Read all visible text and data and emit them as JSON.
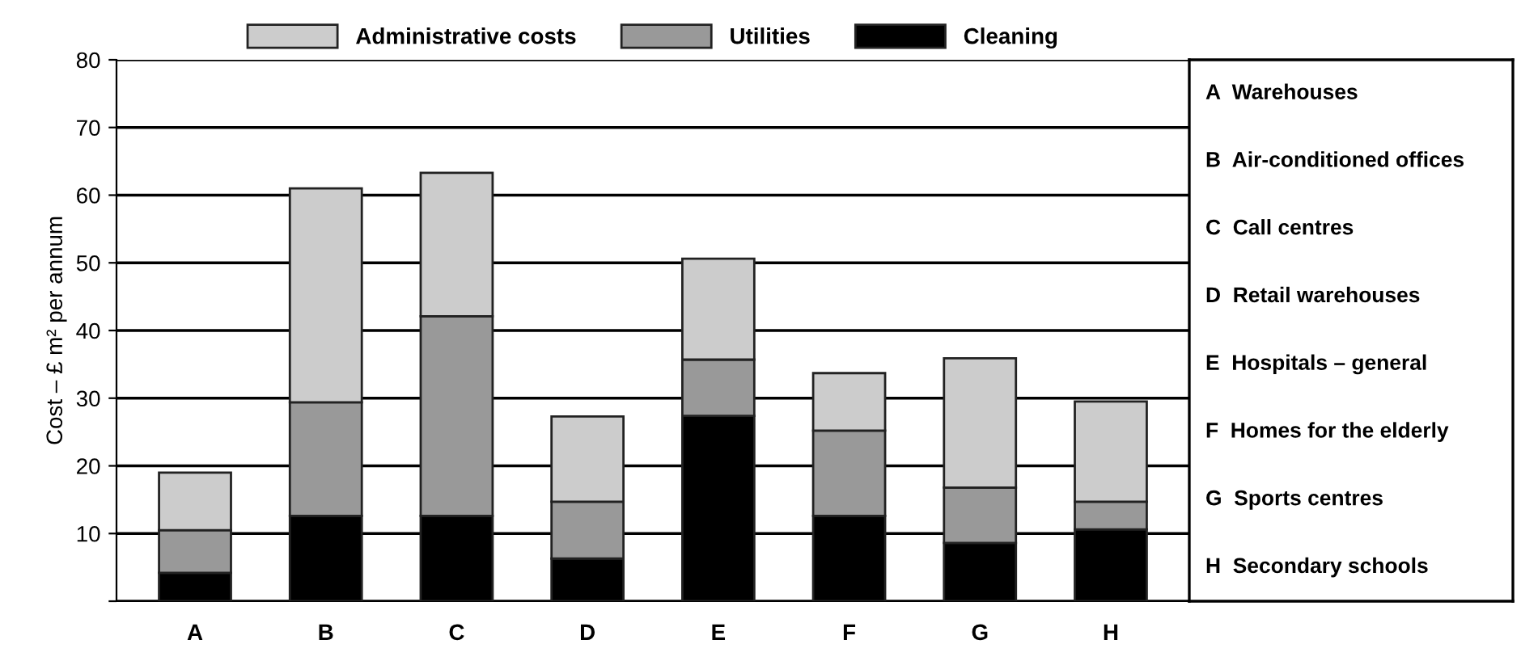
{
  "chart_data": {
    "type": "bar",
    "stacked": true,
    "categories": [
      "A",
      "B",
      "C",
      "D",
      "E",
      "F",
      "G",
      "H"
    ],
    "series": [
      {
        "name": "Cleaning",
        "color": "#000000",
        "values": [
          4.2,
          12.6,
          12.6,
          6.3,
          27.4,
          12.6,
          8.6,
          10.6
        ]
      },
      {
        "name": "Utilities",
        "color": "#999999",
        "values": [
          6.3,
          16.8,
          29.5,
          8.4,
          8.3,
          12.6,
          8.2,
          4.1
        ]
      },
      {
        "name": "Administrative costs",
        "color": "#cccccc",
        "values": [
          8.5,
          31.6,
          21.2,
          12.6,
          14.9,
          8.5,
          19.1,
          14.8
        ]
      }
    ],
    "ylabel": "Cost – £ m² per annum",
    "ylim": [
      0,
      80
    ],
    "yticks": [
      {
        "value": 0,
        "label": null
      },
      10,
      20,
      30,
      40,
      50,
      60,
      70,
      80
    ],
    "grid": "y",
    "legend": "top",
    "annotations": [
      "A  Warehouses",
      "B  Air-conditioned offices",
      "C  Call centres",
      "D  Retail warehouses",
      "E  Hospitals – general",
      "F  Homes for the elderly",
      "G  Sports centres",
      "H  Secondary schools"
    ]
  }
}
